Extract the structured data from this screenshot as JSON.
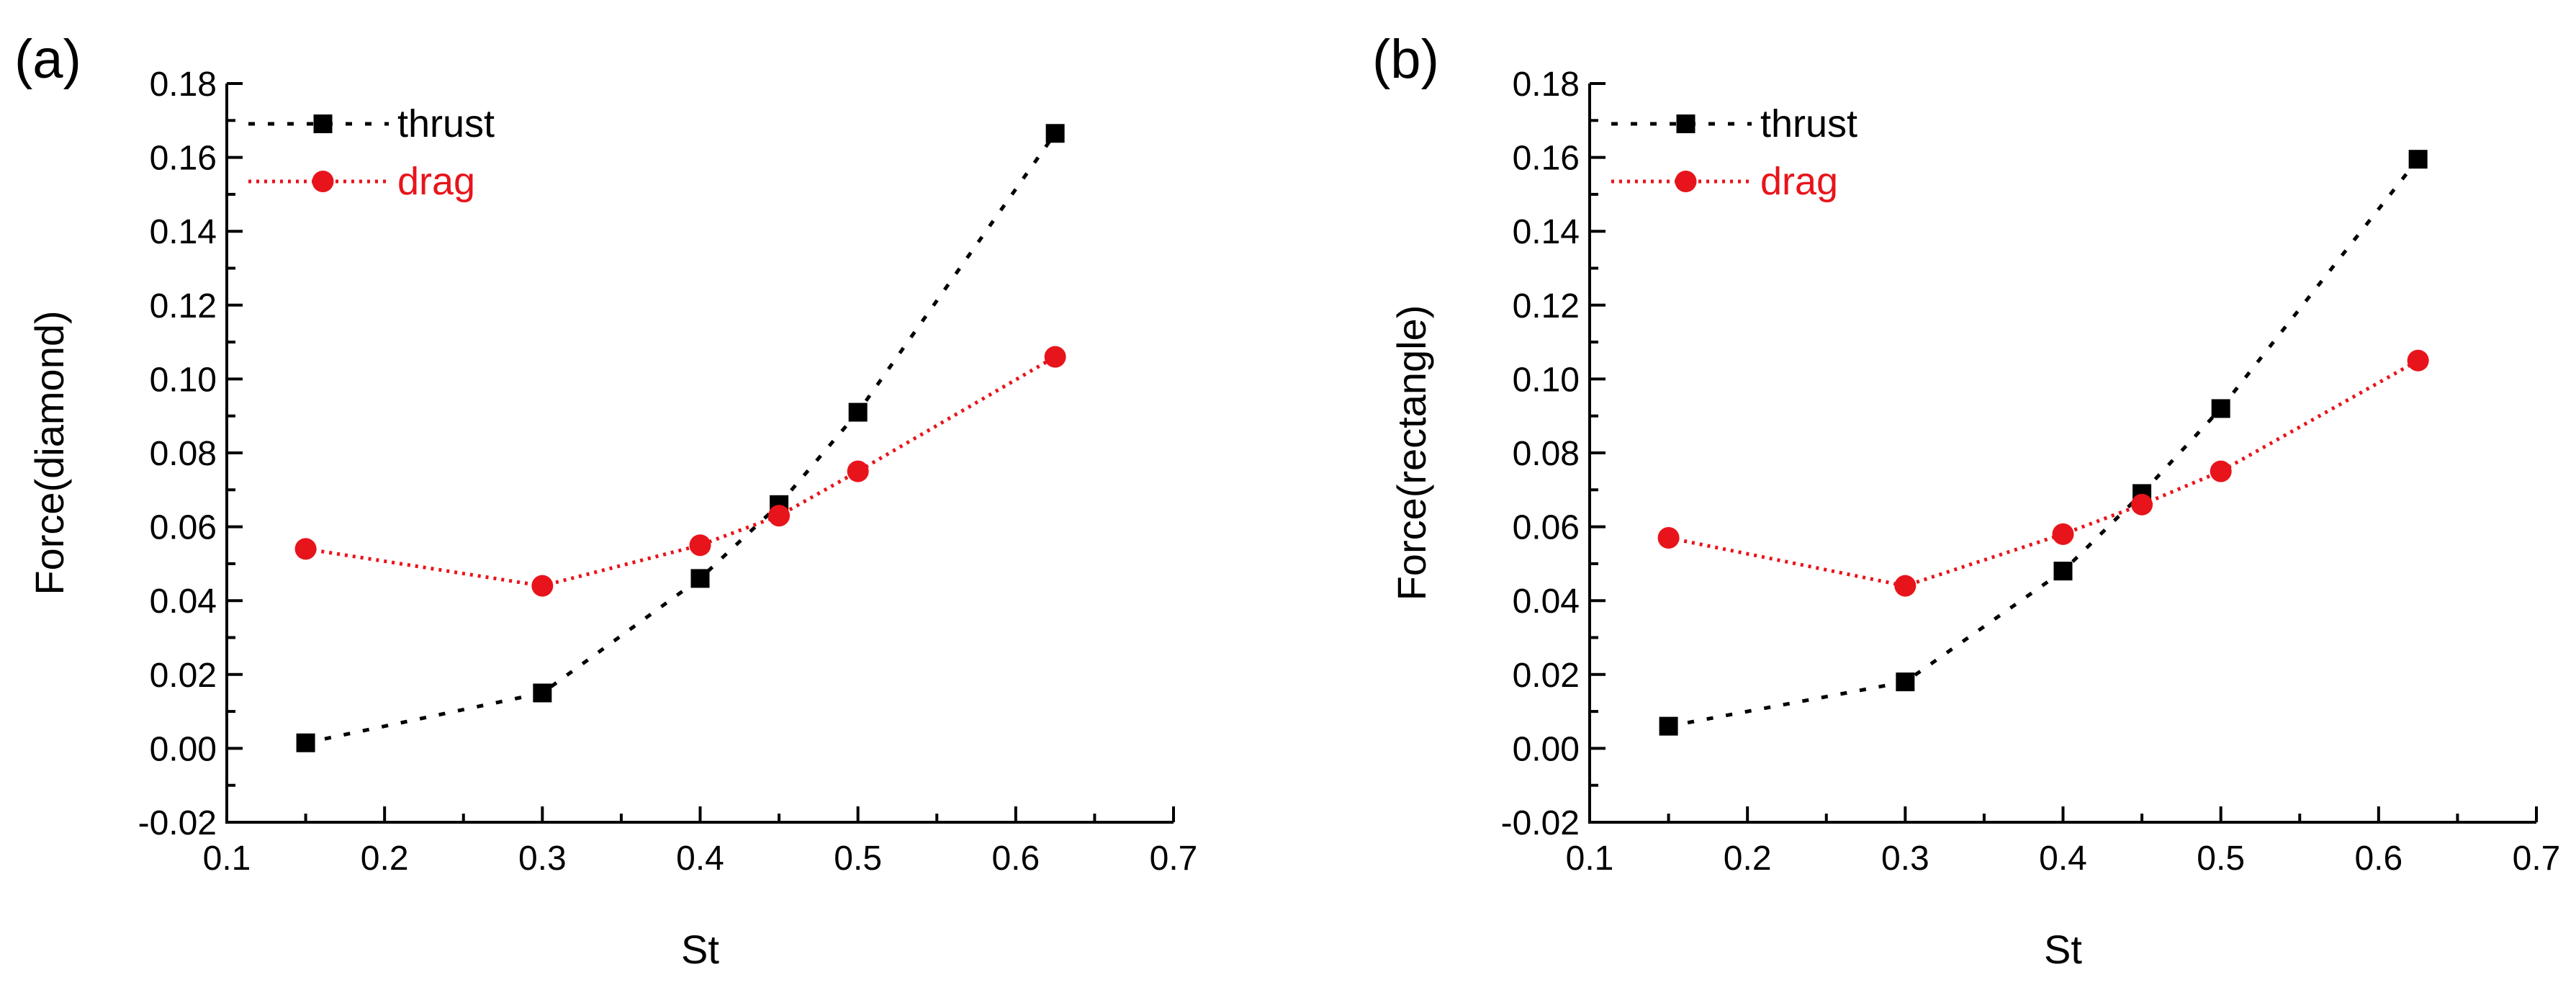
{
  "chart_data": [
    {
      "type": "line",
      "panel_label": "(a)",
      "title": "",
      "xlabel": "St",
      "ylabel": "Force(diamond)",
      "xlim": [
        0.1,
        0.7
      ],
      "ylim": [
        -0.02,
        0.18
      ],
      "x_ticks": [
        0.1,
        0.2,
        0.3,
        0.4,
        0.5,
        0.6,
        0.7
      ],
      "x_tick_labels": [
        "0.1",
        "0.2",
        "0.3",
        "0.4",
        "0.5",
        "0.6",
        "0.7"
      ],
      "y_ticks": [
        -0.02,
        0.0,
        0.02,
        0.04,
        0.06,
        0.08,
        0.1,
        0.12,
        0.14,
        0.16,
        0.18
      ],
      "y_tick_labels": [
        "-0.02",
        "0.00",
        "0.02",
        "0.04",
        "0.06",
        "0.08",
        "0.10",
        "0.12",
        "0.14",
        "0.16",
        "0.18"
      ],
      "grid": false,
      "legend_position": "top-left",
      "series": [
        {
          "name": "thrust",
          "marker": "square",
          "line_style": "dashed",
          "color": "#000000",
          "x": [
            0.15,
            0.3,
            0.4,
            0.45,
            0.5,
            0.625
          ],
          "y": [
            0.0015,
            0.015,
            0.046,
            0.066,
            0.091,
            0.1665
          ]
        },
        {
          "name": "drag",
          "marker": "circle",
          "line_style": "dotted",
          "color": "#e8141b",
          "x": [
            0.15,
            0.3,
            0.4,
            0.45,
            0.5,
            0.625
          ],
          "y": [
            0.054,
            0.044,
            0.055,
            0.063,
            0.075,
            0.106
          ]
        }
      ]
    },
    {
      "type": "line",
      "panel_label": "(b)",
      "title": "",
      "xlabel": "St",
      "ylabel": "Force(rectangle)",
      "xlim": [
        0.1,
        0.7
      ],
      "ylim": [
        -0.02,
        0.18
      ],
      "x_ticks": [
        0.1,
        0.2,
        0.3,
        0.4,
        0.5,
        0.6,
        0.7
      ],
      "x_tick_labels": [
        "0.1",
        "0.2",
        "0.3",
        "0.4",
        "0.5",
        "0.6",
        "0.7"
      ],
      "y_ticks": [
        -0.02,
        0.0,
        0.02,
        0.04,
        0.06,
        0.08,
        0.1,
        0.12,
        0.14,
        0.16,
        0.18
      ],
      "y_tick_labels": [
        "-0.02",
        "0.00",
        "0.02",
        "0.04",
        "0.06",
        "0.08",
        "0.10",
        "0.12",
        "0.14",
        "0.16",
        "0.18"
      ],
      "grid": false,
      "legend_position": "top-left",
      "series": [
        {
          "name": "thrust",
          "marker": "square",
          "line_style": "dashed",
          "color": "#000000",
          "x": [
            0.15,
            0.3,
            0.4,
            0.45,
            0.5,
            0.625
          ],
          "y": [
            0.006,
            0.018,
            0.048,
            0.069,
            0.092,
            0.1595
          ]
        },
        {
          "name": "drag",
          "marker": "circle",
          "line_style": "dotted",
          "color": "#e8141b",
          "x": [
            0.15,
            0.3,
            0.4,
            0.45,
            0.5,
            0.625
          ],
          "y": [
            0.057,
            0.044,
            0.058,
            0.066,
            0.075,
            0.105
          ]
        }
      ]
    }
  ]
}
